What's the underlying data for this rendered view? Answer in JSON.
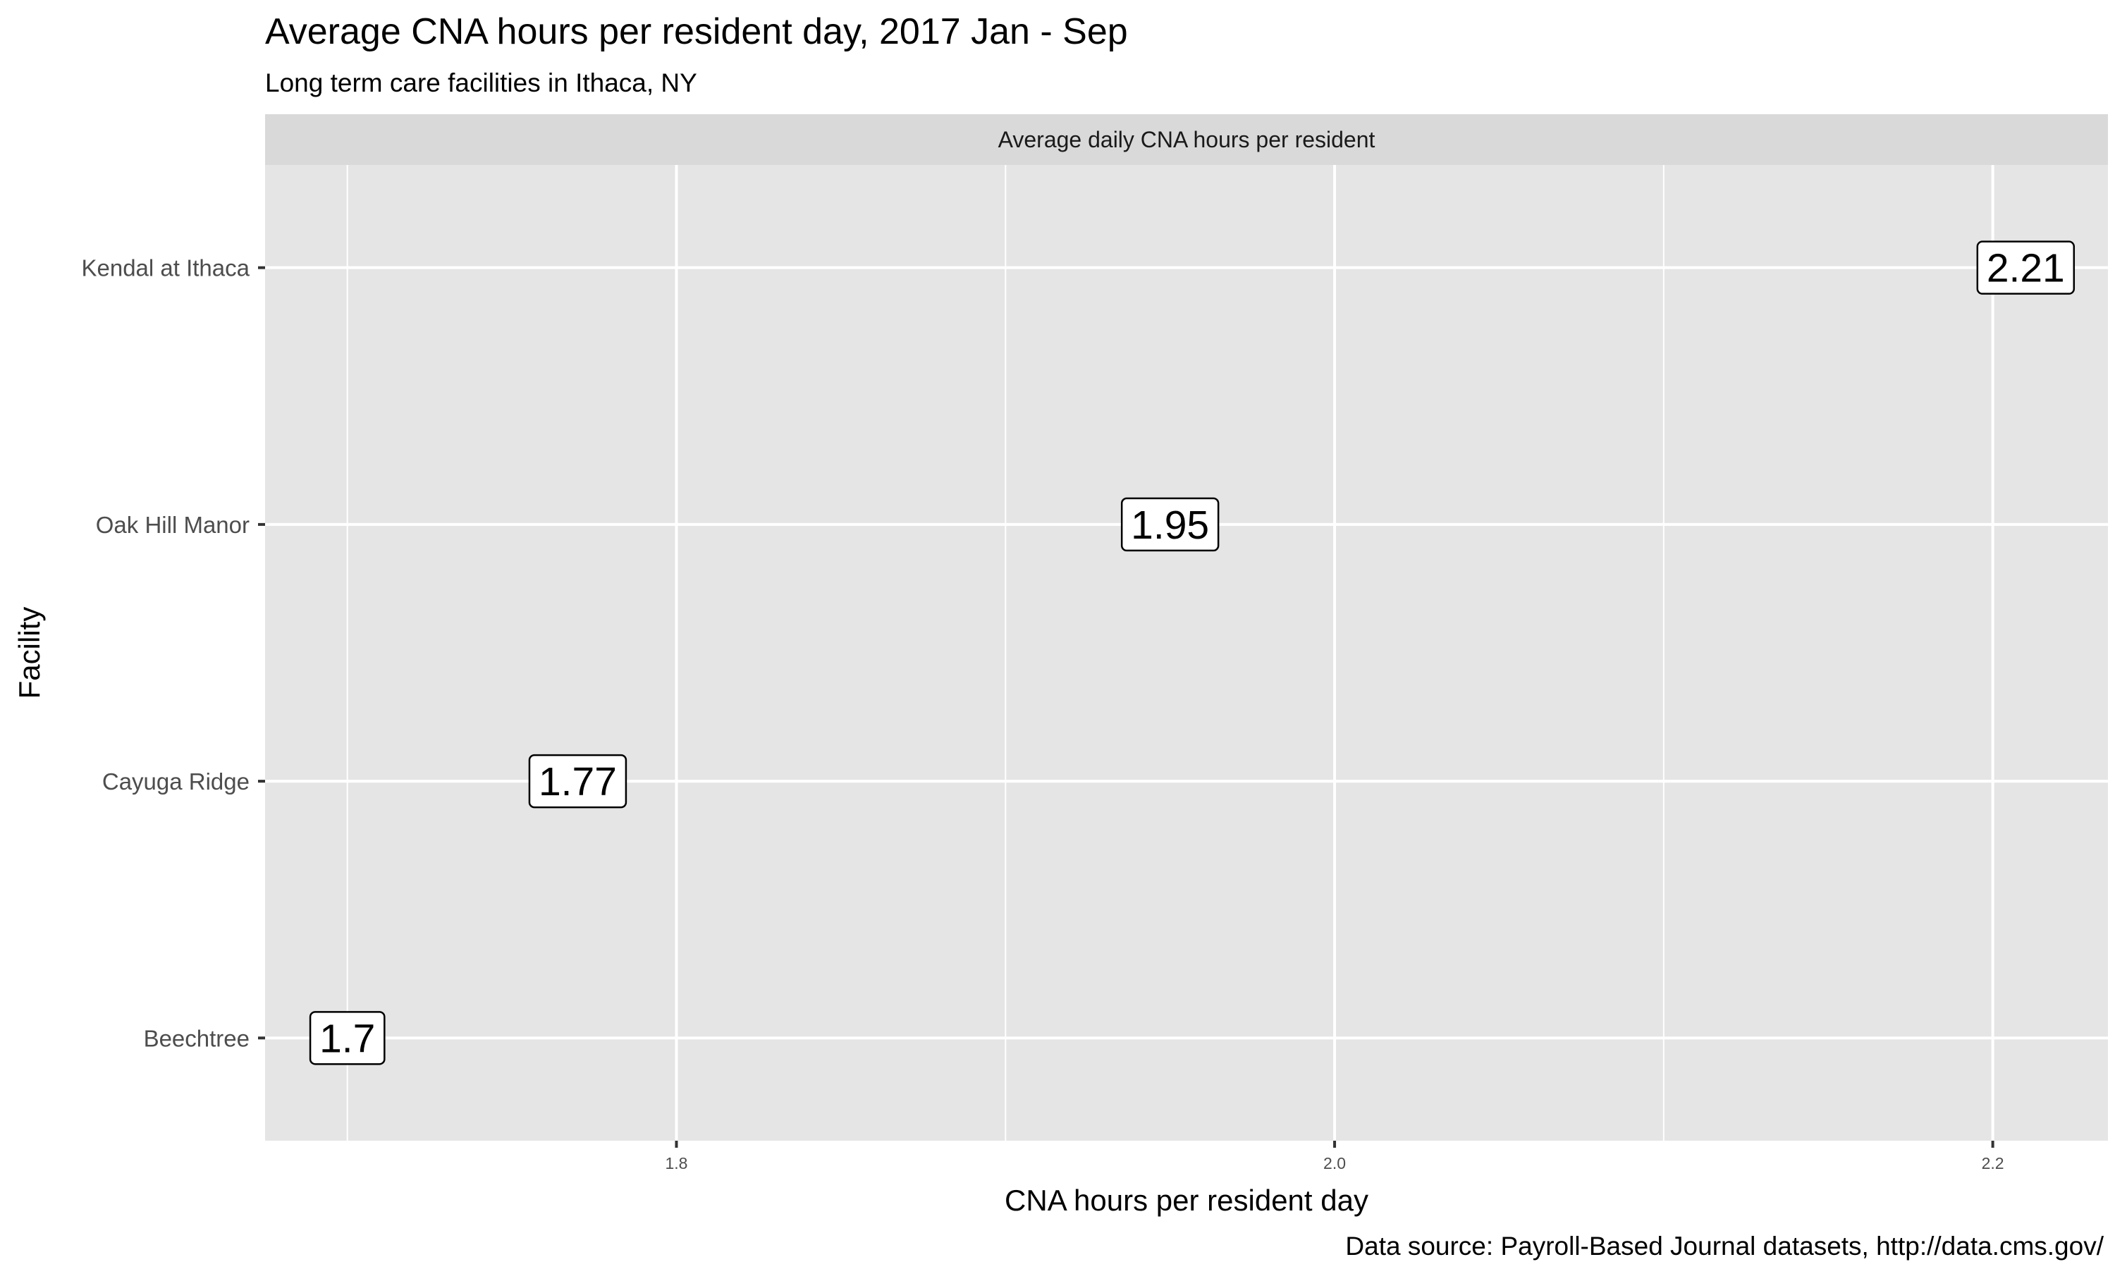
{
  "chart_data": {
    "type": "scatter",
    "title": "Average CNA hours per resident day, 2017 Jan - Sep",
    "subtitle": "Long term care facilities in Ithaca, NY",
    "facet_label": "Average daily CNA hours per resident",
    "xlabel": "CNA hours per resident day",
    "ylabel": "Facility",
    "caption": "Data source: Payroll-Based Journal datasets, http://data.cms.gov/",
    "categories": [
      "Beechtree",
      "Cayuga Ridge",
      "Oak Hill Manor",
      "Kendal at Ithaca"
    ],
    "values": [
      1.7,
      1.77,
      1.95,
      2.21
    ],
    "labels": [
      "1.7",
      "1.77",
      "1.95",
      "2.21"
    ],
    "xlim": [
      1.675,
      2.235
    ],
    "x_ticks": [
      1.8,
      2.0,
      2.2
    ],
    "x_tick_labels": [
      "1.8",
      "2.0",
      "2.2"
    ],
    "grid": true,
    "colors": {
      "panel_background": "#e5e5e5",
      "strip_background": "#d9d9d9",
      "grid": "#ffffff",
      "label_fill": "#ffffff",
      "label_border": "#000000"
    }
  }
}
